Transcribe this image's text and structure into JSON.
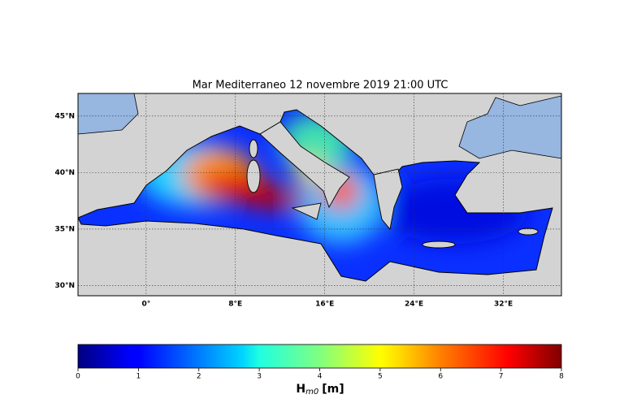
{
  "map": {
    "title": "Mar Mediterraneo 12 novembre 2019  21:00 UTC",
    "lonlim": [
      -6.1,
      37.2
    ],
    "latlim": [
      29.1,
      47.0
    ],
    "lon_ticks": [
      {
        "value": 0,
        "label": "0°"
      },
      {
        "value": 8,
        "label": "8°E"
      },
      {
        "value": 16,
        "label": "16°E"
      },
      {
        "value": 24,
        "label": "24°E"
      },
      {
        "value": 32,
        "label": "32°E"
      }
    ],
    "lat_ticks": [
      {
        "value": 30,
        "label": "30°N"
      },
      {
        "value": 35,
        "label": "35°N"
      },
      {
        "value": 40,
        "label": "40°N"
      },
      {
        "value": 45,
        "label": "45°N"
      }
    ],
    "colorbar": {
      "lim": [
        0,
        8
      ],
      "ticks": [
        0,
        1,
        2,
        3,
        4,
        5,
        6,
        7,
        8
      ],
      "label": {
        "symbol": "H",
        "subscript": "m0",
        "unit": "[m]"
      }
    }
  }
}
